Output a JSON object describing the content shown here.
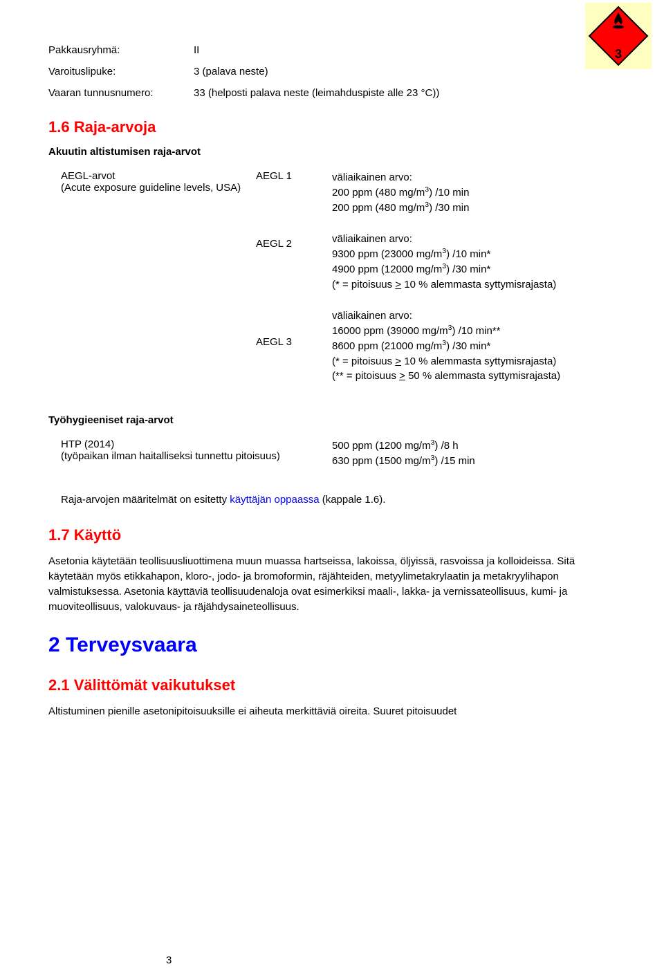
{
  "hazard_icon": {
    "number": "3"
  },
  "kv": {
    "rows": [
      {
        "label": "Pakkausryhmä:",
        "value": "II"
      },
      {
        "label": "Varoituslipuke:",
        "value": "3 (palava neste)"
      },
      {
        "label": "Vaaran tunnusnumero:",
        "value": "33 (helposti palava neste (leimahduspiste alle 23 °C))"
      }
    ]
  },
  "section_1_6": {
    "heading": "1.6 Raja-arvoja",
    "sub1": "Akuutin altistumisen raja-arvot",
    "aegl_source": {
      "line1": "AEGL-arvot",
      "line2": "(Acute exposure guideline levels, USA)"
    },
    "aegl": [
      {
        "label": "AEGL 1",
        "title": "väliaikainen arvo:",
        "lines_html": [
          "200 ppm (480 mg/m<sup>3</sup>) /10 min",
          "200 ppm (480 mg/m<sup>3</sup>) /30 min"
        ]
      },
      {
        "label": "AEGL 2",
        "title": "väliaikainen arvo:",
        "lines_html": [
          "9300 ppm (23000 mg/m<sup>3</sup>) /10 min*",
          "4900 ppm (12000 mg/m<sup>3</sup>) /30 min*",
          "(* = pitoisuus <u>&gt;</u> 10 % alemmasta syttymisrajasta)"
        ]
      },
      {
        "label": "AEGL 3",
        "title": "väliaikainen arvo:",
        "lines_html": [
          "16000 ppm (39000 mg/m<sup>3</sup>) /10 min**",
          "8600 ppm (21000 mg/m<sup>3</sup>) /30 min*",
          "(* = pitoisuus <u>&gt;</u> 10 % alemmasta syttymisrajasta)",
          "(** = pitoisuus <u>&gt;</u> 50 % alemmasta syttymisrajasta)"
        ]
      }
    ],
    "sub2": "Työhygieeniset raja-arvot",
    "htp": {
      "left_line1": "HTP (2014)",
      "left_line2": "(työpaikan ilman haitalliseksi tunnettu pitoisuus)",
      "right_lines_html": [
        "500 ppm (1200 mg/m<sup>3</sup>) /8 h",
        "630 ppm (1500 mg/m<sup>3</sup>) /15 min"
      ]
    },
    "footnote_pre": "Raja-arvojen määritelmät on esitetty ",
    "footnote_link": "käyttäjän oppaassa",
    "footnote_post": " (kappale 1.6)."
  },
  "section_1_7": {
    "heading": "1.7 Käyttö",
    "body": "Asetonia käytetään teollisuusliuottimena muun muassa hartseissa, lakoissa, öljyissä, rasvoissa ja kolloideissa. Sitä käytetään myös etikkahapon, kloro-, jodo- ja bromoformin, räjähteiden, metyylimetakrylaatin ja metakryylihapon valmistuksessa. Asetonia käyttäviä teollisuudenaloja ovat esimerkiksi maali-, lakka- ja vernissateollisuus, kumi- ja muoviteollisuus, valokuvaus- ja räjähdysaineteollisuus."
  },
  "section_2": {
    "heading": "2 Terveysvaara",
    "sub": "2.1 Välittömät vaikutukset",
    "body": "Altistuminen pienille asetonipitoisuuksille ei aiheuta merkittäviä oireita. Suuret pitoisuudet"
  },
  "page_number": "3"
}
